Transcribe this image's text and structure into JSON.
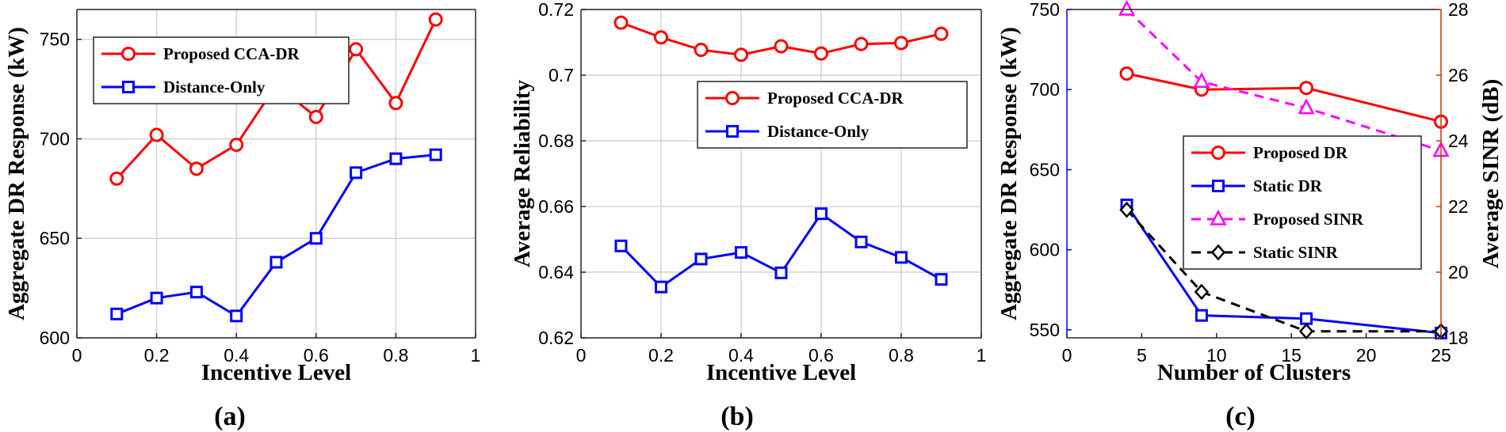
{
  "chart_data": [
    {
      "panel_label": "(a)",
      "type": "line",
      "xlabel": "Incentive Level",
      "ylabel": "Aggregate DR Response (kW)",
      "xlim": [
        0,
        1
      ],
      "ylim": [
        600,
        765
      ],
      "xticks": [
        0,
        0.2,
        0.4,
        0.6,
        0.8,
        1
      ],
      "xtick_labels": [
        "0",
        "0.2",
        "0.4",
        "0.6",
        "0.8",
        "1"
      ],
      "yticks": [
        600,
        650,
        700,
        750
      ],
      "ytick_labels": [
        "600",
        "650",
        "700",
        "750"
      ],
      "grid": true,
      "legend_position": "top-left",
      "series": [
        {
          "name": "Proposed CCA-DR",
          "color": "#ff0000",
          "marker": "circle",
          "x": [
            0.1,
            0.2,
            0.3,
            0.4,
            0.5,
            0.6,
            0.7,
            0.8,
            0.9
          ],
          "values": [
            680,
            702,
            685,
            697,
            727,
            711,
            745,
            718,
            760
          ]
        },
        {
          "name": "Distance-Only",
          "color": "#0000ff",
          "marker": "square",
          "x": [
            0.1,
            0.2,
            0.3,
            0.4,
            0.5,
            0.6,
            0.7,
            0.8,
            0.9
          ],
          "values": [
            612,
            620,
            623,
            611,
            638,
            650,
            683,
            690,
            692
          ]
        }
      ]
    },
    {
      "panel_label": "(b)",
      "type": "line",
      "xlabel": "Incentive Level",
      "ylabel": "Average Reliability",
      "xlim": [
        0,
        1
      ],
      "ylim": [
        0.62,
        0.72
      ],
      "xticks": [
        0,
        0.2,
        0.4,
        0.6,
        0.8,
        1
      ],
      "xtick_labels": [
        "0",
        "0.2",
        "0.4",
        "0.6",
        "0.8",
        "1"
      ],
      "yticks": [
        0.62,
        0.64,
        0.66,
        0.68,
        0.7,
        0.72
      ],
      "ytick_labels": [
        "0.62",
        "0.64",
        "0.66",
        "0.68",
        "0.7",
        "0.72"
      ],
      "grid": true,
      "legend_position": "right",
      "series": [
        {
          "name": "Proposed CCA-DR",
          "color": "#ff0000",
          "marker": "circle",
          "x": [
            0.1,
            0.2,
            0.3,
            0.4,
            0.5,
            0.6,
            0.7,
            0.8,
            0.9
          ],
          "values": [
            0.716,
            0.7115,
            0.7077,
            0.7062,
            0.7088,
            0.7066,
            0.7095,
            0.7098,
            0.7126
          ]
        },
        {
          "name": "Distance-Only",
          "color": "#0000ff",
          "marker": "square",
          "x": [
            0.1,
            0.2,
            0.3,
            0.4,
            0.5,
            0.6,
            0.7,
            0.8,
            0.9
          ],
          "values": [
            0.648,
            0.6355,
            0.644,
            0.646,
            0.6398,
            0.6578,
            0.6492,
            0.6445,
            0.6378
          ]
        }
      ]
    },
    {
      "panel_label": "(c)",
      "type": "line",
      "xlabel": "Number of Clusters",
      "ylabel": "Aggregate DR Response (kW)",
      "ylabel_right": "Average SINR (dB)",
      "left_axis_color": "#0000ff",
      "right_axis_color": "#cc3300",
      "xlim": [
        0,
        25
      ],
      "ylim": [
        545,
        750
      ],
      "ylim_right": [
        18,
        28
      ],
      "xticks": [
        0,
        5,
        10,
        15,
        20,
        25
      ],
      "xtick_labels": [
        "0",
        "5",
        "10",
        "15",
        "20",
        "25"
      ],
      "yticks": [
        550,
        600,
        650,
        700,
        750
      ],
      "ytick_labels": [
        "550",
        "600",
        "650",
        "700",
        "750"
      ],
      "yticks_right": [
        18,
        20,
        22,
        24,
        26,
        28
      ],
      "ytick_labels_right": [
        "18",
        "20",
        "22",
        "24",
        "26",
        "28"
      ],
      "grid": false,
      "legend_position": "right",
      "series": [
        {
          "name": "Proposed DR",
          "color": "#ff0000",
          "marker": "circle",
          "dash": false,
          "axis": "left",
          "x": [
            4,
            9,
            16,
            25
          ],
          "values": [
            710,
            700,
            701,
            680
          ]
        },
        {
          "name": "Static DR",
          "color": "#0000ff",
          "marker": "square",
          "dash": false,
          "axis": "left",
          "x": [
            4,
            9,
            16,
            25
          ],
          "values": [
            628,
            559,
            557,
            548
          ]
        },
        {
          "name": "Proposed SINR",
          "color": "#ff00ff",
          "marker": "triangle",
          "dash": true,
          "axis": "right",
          "x": [
            4,
            9,
            16,
            25
          ],
          "values": [
            28.0,
            25.8,
            25.0,
            23.7
          ]
        },
        {
          "name": "Static SINR",
          "color": "#000000",
          "marker": "diamond",
          "dash": true,
          "axis": "right",
          "x": [
            4,
            9,
            16,
            25
          ],
          "values": [
            21.9,
            19.4,
            18.2,
            18.2
          ]
        }
      ]
    }
  ]
}
